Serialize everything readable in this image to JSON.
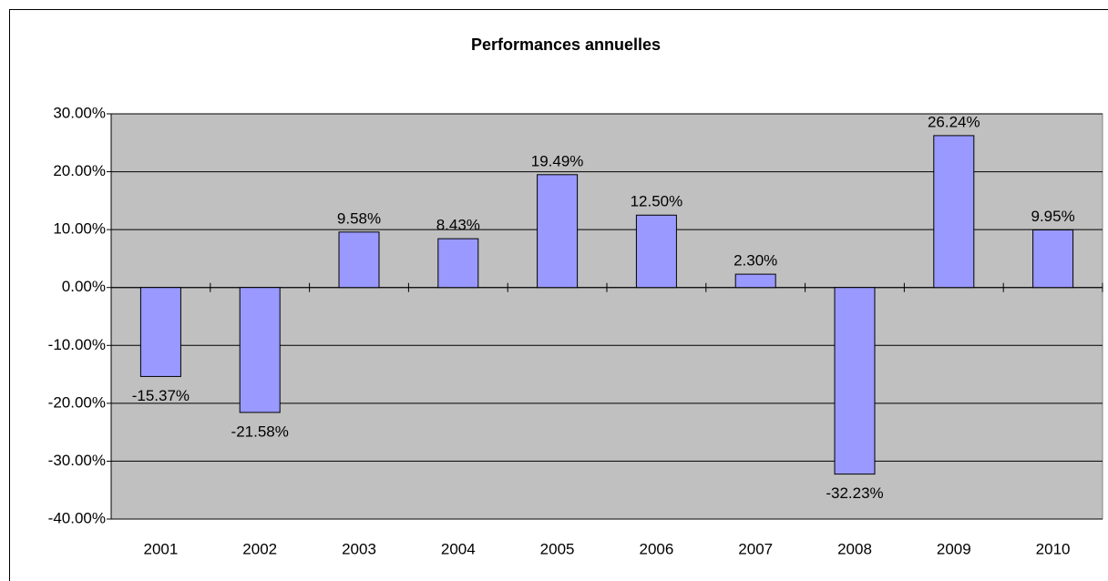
{
  "chart_data": {
    "type": "bar",
    "title": "Performances annuelles",
    "categories": [
      "2001",
      "2002",
      "2003",
      "2004",
      "2005",
      "2006",
      "2007",
      "2008",
      "2009",
      "2010"
    ],
    "values": [
      -15.37,
      -21.58,
      9.58,
      8.43,
      19.49,
      12.5,
      2.3,
      -32.23,
      26.24,
      9.95
    ],
    "value_labels": [
      "-15.37%",
      "-21.58%",
      "9.58%",
      "8.43%",
      "19.49%",
      "12.50%",
      "2.30%",
      "-32.23%",
      "26.24%",
      "9.95%"
    ],
    "color": "#9999ff",
    "ylim": [
      -40,
      30
    ],
    "yticks": [
      {
        "value": -40,
        "label": "-40.00%"
      },
      {
        "value": -30,
        "label": "-30.00%"
      },
      {
        "value": -20,
        "label": "-20.00%"
      },
      {
        "value": -10,
        "label": "-10.00%"
      },
      {
        "value": 0,
        "label": "0.00%"
      },
      {
        "value": 10,
        "label": "10.00%"
      },
      {
        "value": 20,
        "label": "20.00%"
      },
      {
        "value": 30,
        "label": "30.00%"
      }
    ],
    "grid": true
  }
}
